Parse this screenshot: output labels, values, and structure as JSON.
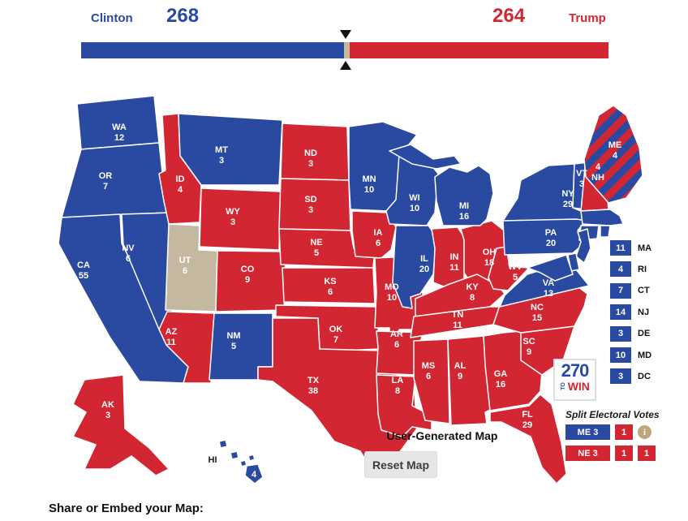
{
  "header": {
    "left_name": "Clinton",
    "left_votes": "268",
    "right_votes": "264",
    "right_name": "Trump",
    "bar": {
      "dem": 268,
      "unpledged": 6,
      "rep": 264,
      "total": 538,
      "win_mark": 270
    }
  },
  "colors": {
    "dem": "#2a4aa1",
    "rep": "#d22733",
    "unpledged": "#c5b8a0",
    "info": "#bfa77c",
    "text_dark": "#1a1a1a"
  },
  "map": {
    "states": [
      {
        "abbr": "WA",
        "ev": "12",
        "party": "dem"
      },
      {
        "abbr": "OR",
        "ev": "7",
        "party": "dem"
      },
      {
        "abbr": "CA",
        "ev": "55",
        "party": "dem"
      },
      {
        "abbr": "NV",
        "ev": "6",
        "party": "dem"
      },
      {
        "abbr": "ID",
        "ev": "4",
        "party": "rep"
      },
      {
        "abbr": "MT",
        "ev": "3",
        "party": "dem"
      },
      {
        "abbr": "WY",
        "ev": "3",
        "party": "rep"
      },
      {
        "abbr": "UT",
        "ev": "6",
        "party": "unpledged"
      },
      {
        "abbr": "CO",
        "ev": "9",
        "party": "rep"
      },
      {
        "abbr": "AZ",
        "ev": "11",
        "party": "rep"
      },
      {
        "abbr": "NM",
        "ev": "5",
        "party": "dem"
      },
      {
        "abbr": "ND",
        "ev": "3",
        "party": "rep"
      },
      {
        "abbr": "SD",
        "ev": "3",
        "party": "rep"
      },
      {
        "abbr": "NE",
        "ev": "5",
        "party": "rep"
      },
      {
        "abbr": "KS",
        "ev": "6",
        "party": "rep"
      },
      {
        "abbr": "OK",
        "ev": "7",
        "party": "rep"
      },
      {
        "abbr": "TX",
        "ev": "38",
        "party": "rep"
      },
      {
        "abbr": "MN",
        "ev": "10",
        "party": "dem"
      },
      {
        "abbr": "IA",
        "ev": "6",
        "party": "rep"
      },
      {
        "abbr": "MO",
        "ev": "10",
        "party": "rep"
      },
      {
        "abbr": "AR",
        "ev": "6",
        "party": "rep"
      },
      {
        "abbr": "LA",
        "ev": "8",
        "party": "rep"
      },
      {
        "abbr": "WI",
        "ev": "10",
        "party": "dem"
      },
      {
        "abbr": "IL",
        "ev": "20",
        "party": "dem"
      },
      {
        "abbr": "IN",
        "ev": "11",
        "party": "rep"
      },
      {
        "abbr": "OH",
        "ev": "18",
        "party": "rep"
      },
      {
        "abbr": "MI",
        "ev": "16",
        "party": "dem"
      },
      {
        "abbr": "KY",
        "ev": "8",
        "party": "rep"
      },
      {
        "abbr": "TN",
        "ev": "11",
        "party": "rep"
      },
      {
        "abbr": "MS",
        "ev": "6",
        "party": "rep"
      },
      {
        "abbr": "AL",
        "ev": "9",
        "party": "rep"
      },
      {
        "abbr": "GA",
        "ev": "16",
        "party": "rep"
      },
      {
        "abbr": "FL",
        "ev": "29",
        "party": "rep"
      },
      {
        "abbr": "SC",
        "ev": "9",
        "party": "rep"
      },
      {
        "abbr": "NC",
        "ev": "15",
        "party": "rep"
      },
      {
        "abbr": "VA",
        "ev": "13",
        "party": "dem"
      },
      {
        "abbr": "WV",
        "ev": "5",
        "party": "rep"
      },
      {
        "abbr": "PA",
        "ev": "20",
        "party": "dem"
      },
      {
        "abbr": "NY",
        "ev": "29",
        "party": "dem"
      },
      {
        "abbr": "VT",
        "ev": "3",
        "party": "dem"
      },
      {
        "abbr": "NH",
        "ev": "4",
        "party": "rep"
      },
      {
        "abbr": "ME",
        "ev": "4",
        "party": "split"
      },
      {
        "abbr": "MA",
        "ev": "11",
        "party": "dem"
      },
      {
        "abbr": "RI",
        "ev": "4",
        "party": "dem"
      },
      {
        "abbr": "CT",
        "ev": "7",
        "party": "dem"
      },
      {
        "abbr": "NJ",
        "ev": "14",
        "party": "dem"
      },
      {
        "abbr": "DE",
        "ev": "3",
        "party": "dem"
      },
      {
        "abbr": "MD",
        "ev": "10",
        "party": "dem"
      },
      {
        "abbr": "AK",
        "ev": "3",
        "party": "rep"
      },
      {
        "abbr": "HI",
        "ev": "4",
        "party": "dem"
      }
    ]
  },
  "legend_small_states": [
    {
      "abbr": "MA",
      "ev": "11",
      "party": "dem"
    },
    {
      "abbr": "RI",
      "ev": "4",
      "party": "dem"
    },
    {
      "abbr": "CT",
      "ev": "7",
      "party": "dem"
    },
    {
      "abbr": "NJ",
      "ev": "14",
      "party": "dem"
    },
    {
      "abbr": "DE",
      "ev": "3",
      "party": "dem"
    },
    {
      "abbr": "MD",
      "ev": "10",
      "party": "dem"
    },
    {
      "abbr": "DC",
      "ev": "3",
      "party": "dem"
    }
  ],
  "logo": {
    "number": "270",
    "to": "TO",
    "win": "WIN"
  },
  "split": {
    "title": "Split Electoral Votes",
    "rows": [
      {
        "boxes": [
          {
            "label": "ME 3",
            "party": "dem",
            "wide": true
          },
          {
            "label": "1",
            "party": "rep",
            "wide": false
          }
        ],
        "info": true
      },
      {
        "boxes": [
          {
            "label": "NE 3",
            "party": "rep",
            "wide": true
          },
          {
            "label": "1",
            "party": "rep",
            "wide": false
          },
          {
            "label": "1",
            "party": "rep",
            "wide": false
          }
        ],
        "info": false
      }
    ]
  },
  "footer": {
    "caption": "User-Generated Map",
    "reset_label": "Reset Map",
    "share_label": "Share or Embed your Map:"
  }
}
